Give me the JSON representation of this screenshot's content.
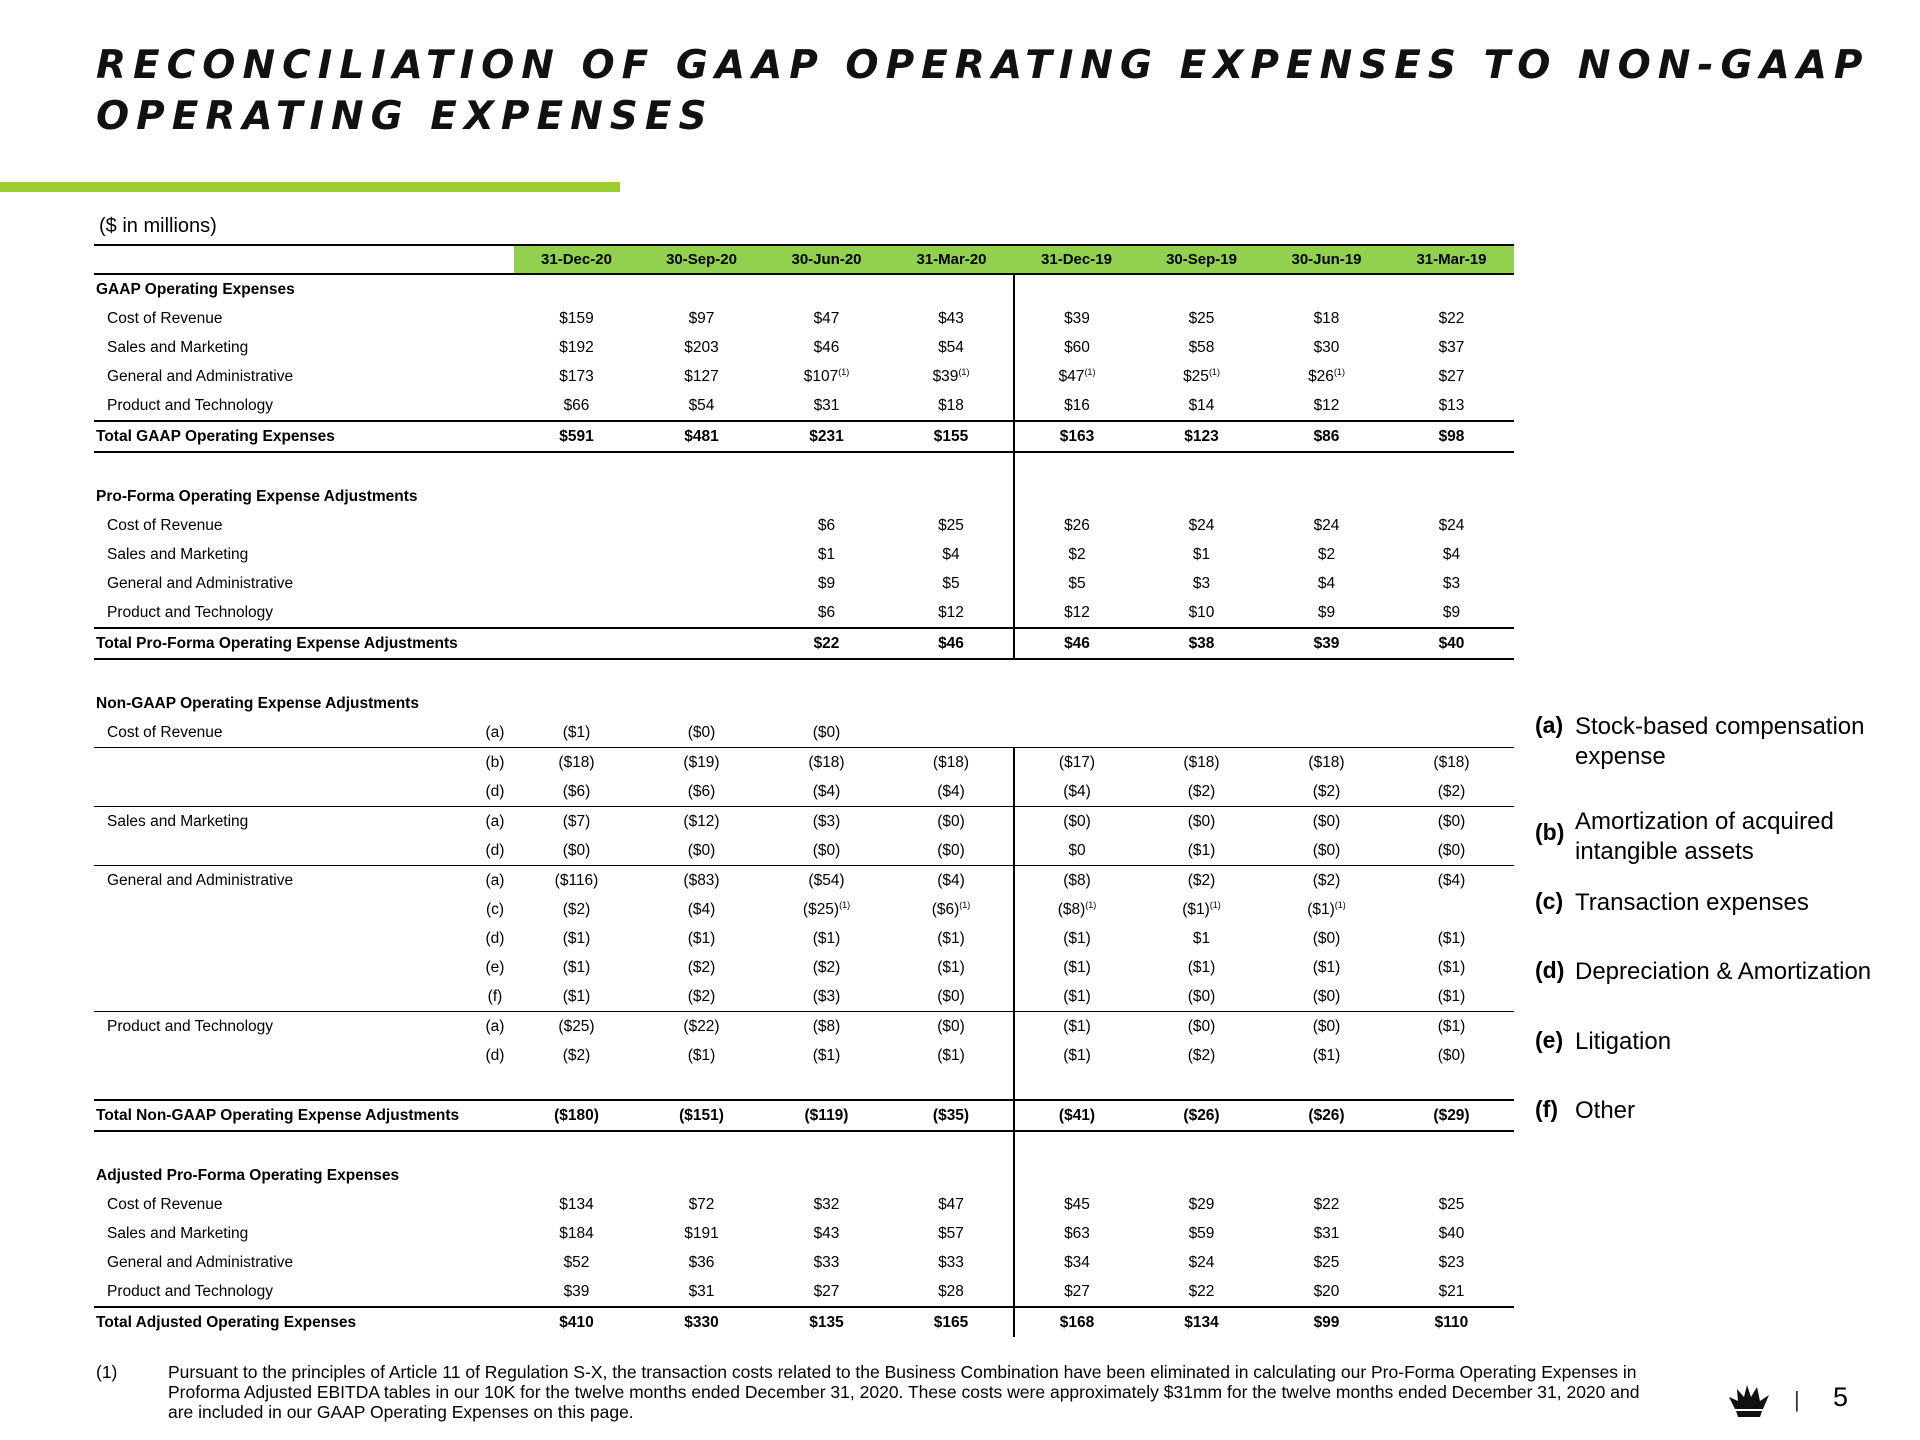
{
  "title": {
    "line1": "RECONCILIATION OF GAAP OPERATING EXPENSES TO NON-GAAP",
    "line2": "OPERATING EXPENSES"
  },
  "units": "($ in millions)",
  "columns": [
    "31-Dec-20",
    "30-Sep-20",
    "30-Jun-20",
    "31-Mar-20",
    "31-Dec-19",
    "30-Sep-19",
    "30-Jun-19",
    "31-Mar-19"
  ],
  "footnote_marker": "(1)",
  "rows": [
    {
      "kind": "section",
      "label": "GAAP Operating Expenses",
      "code": "",
      "values": [
        "",
        "",
        "",
        "",
        "",
        "",
        "",
        ""
      ]
    },
    {
      "kind": "item",
      "label": "Cost of Revenue",
      "code": "",
      "values": [
        "$159",
        "$97",
        "$47",
        "$43",
        "$39",
        "$25",
        "$18",
        "$22"
      ]
    },
    {
      "kind": "item",
      "label": "Sales and Marketing",
      "code": "",
      "values": [
        "$192",
        "$203",
        "$46",
        "$54",
        "$60",
        "$58",
        "$30",
        "$37"
      ]
    },
    {
      "kind": "item",
      "label": "General and Administrative",
      "code": "",
      "values": [
        "$173",
        "$127",
        "$107",
        "$39",
        "$47",
        "$25",
        "$26",
        "$27"
      ],
      "fn": [
        false,
        false,
        true,
        true,
        true,
        true,
        true,
        false
      ]
    },
    {
      "kind": "item",
      "label": "Product and Technology",
      "code": "",
      "values": [
        "$66",
        "$54",
        "$31",
        "$18",
        "$16",
        "$14",
        "$12",
        "$13"
      ]
    },
    {
      "kind": "total",
      "label": "Total GAAP Operating Expenses",
      "code": "",
      "values": [
        "$591",
        "$481",
        "$231",
        "$155",
        "$163",
        "$123",
        "$86",
        "$98"
      ]
    },
    {
      "kind": "blank",
      "label": "",
      "code": "",
      "values": [
        "",
        "",
        "",
        "",
        "",
        "",
        "",
        ""
      ]
    },
    {
      "kind": "section",
      "label": "Pro-Forma Operating Expense Adjustments",
      "code": "",
      "values": [
        "",
        "",
        "",
        "",
        "",
        "",
        "",
        ""
      ]
    },
    {
      "kind": "item",
      "label": "Cost of Revenue",
      "code": "",
      "values": [
        "",
        "",
        "$6",
        "$25",
        "$26",
        "$24",
        "$24",
        "$24"
      ]
    },
    {
      "kind": "item",
      "label": "Sales and Marketing",
      "code": "",
      "values": [
        "",
        "",
        "$1",
        "$4",
        "$2",
        "$1",
        "$2",
        "$4"
      ]
    },
    {
      "kind": "item",
      "label": "General and Administrative",
      "code": "",
      "values": [
        "",
        "",
        "$9",
        "$5",
        "$5",
        "$3",
        "$4",
        "$3"
      ]
    },
    {
      "kind": "item",
      "label": "Product and Technology",
      "code": "",
      "values": [
        "",
        "",
        "$6",
        "$12",
        "$12",
        "$10",
        "$9",
        "$9"
      ]
    },
    {
      "kind": "total",
      "label": "Total Pro-Forma Operating Expense Adjustments",
      "code": "",
      "values": [
        "",
        "",
        "$22",
        "$46",
        "$46",
        "$38",
        "$39",
        "$40"
      ]
    },
    {
      "kind": "blank",
      "label": "",
      "code": "",
      "values": [
        "",
        "",
        "",
        "",
        "",
        "",
        "",
        ""
      ],
      "nosep": true
    },
    {
      "kind": "section",
      "label": "Non-GAAP Operating Expense Adjustments",
      "code": "",
      "values": [
        "",
        "",
        "",
        "",
        "",
        "",
        "",
        ""
      ],
      "nosep": true
    },
    {
      "kind": "item",
      "label": "Cost of Revenue",
      "code": "(a)",
      "values": [
        "($1)",
        "($0)",
        "($0)",
        "",
        "",
        "",
        "",
        ""
      ],
      "nosep": true,
      "bl": true
    },
    {
      "kind": "item",
      "label": "",
      "code": "(b)",
      "values": [
        "($18)",
        "($19)",
        "($18)",
        "($18)",
        "($17)",
        "($18)",
        "($18)",
        "($18)"
      ]
    },
    {
      "kind": "item",
      "label": "",
      "code": "(d)",
      "values": [
        "($6)",
        "($6)",
        "($4)",
        "($4)",
        "($4)",
        "($2)",
        "($2)",
        "($2)"
      ],
      "bl": true
    },
    {
      "kind": "item",
      "label": "Sales and Marketing",
      "code": "(a)",
      "values": [
        "($7)",
        "($12)",
        "($3)",
        "($0)",
        "($0)",
        "($0)",
        "($0)",
        "($0)"
      ]
    },
    {
      "kind": "item",
      "label": "",
      "code": "(d)",
      "values": [
        "($0)",
        "($0)",
        "($0)",
        "($0)",
        "$0",
        "($1)",
        "($0)",
        "($0)"
      ],
      "bl": true
    },
    {
      "kind": "item",
      "label": "General and Administrative",
      "code": "(a)",
      "values": [
        "($116)",
        "($83)",
        "($54)",
        "($4)",
        "($8)",
        "($2)",
        "($2)",
        "($4)"
      ]
    },
    {
      "kind": "item",
      "label": "",
      "code": "(c)",
      "values": [
        "($2)",
        "($4)",
        "($25)",
        "($6)",
        "($8)",
        "($1)",
        "($1)",
        ""
      ],
      "fn": [
        false,
        false,
        true,
        true,
        true,
        true,
        true,
        false
      ]
    },
    {
      "kind": "item",
      "label": "",
      "code": "(d)",
      "values": [
        "($1)",
        "($1)",
        "($1)",
        "($1)",
        "($1)",
        "$1",
        "($0)",
        "($1)"
      ]
    },
    {
      "kind": "item",
      "label": "",
      "code": "(e)",
      "values": [
        "($1)",
        "($2)",
        "($2)",
        "($1)",
        "($1)",
        "($1)",
        "($1)",
        "($1)"
      ]
    },
    {
      "kind": "item",
      "label": "",
      "code": "(f)",
      "values": [
        "($1)",
        "($2)",
        "($3)",
        "($0)",
        "($1)",
        "($0)",
        "($0)",
        "($1)"
      ],
      "bl": true
    },
    {
      "kind": "item",
      "label": "Product and Technology",
      "code": "(a)",
      "values": [
        "($25)",
        "($22)",
        "($8)",
        "($0)",
        "($1)",
        "($0)",
        "($0)",
        "($1)"
      ]
    },
    {
      "kind": "item",
      "label": "",
      "code": "(d)",
      "values": [
        "($2)",
        "($1)",
        "($1)",
        "($1)",
        "($1)",
        "($2)",
        "($1)",
        "($0)"
      ]
    },
    {
      "kind": "blank",
      "label": "",
      "code": "",
      "values": [
        "",
        "",
        "",
        "",
        "",
        "",
        "",
        ""
      ]
    },
    {
      "kind": "total",
      "label": "Total Non-GAAP Operating Expense Adjustments",
      "code": "",
      "values": [
        "($180)",
        "($151)",
        "($119)",
        "($35)",
        "($41)",
        "($26)",
        "($26)",
        "($29)"
      ]
    },
    {
      "kind": "blank",
      "label": "",
      "code": "",
      "values": [
        "",
        "",
        "",
        "",
        "",
        "",
        "",
        ""
      ]
    },
    {
      "kind": "section",
      "label": "Adjusted Pro-Forma Operating Expenses",
      "code": "",
      "values": [
        "",
        "",
        "",
        "",
        "",
        "",
        "",
        ""
      ]
    },
    {
      "kind": "item",
      "label": "Cost of Revenue",
      "code": "",
      "values": [
        "$134",
        "$72",
        "$32",
        "$47",
        "$45",
        "$29",
        "$22",
        "$25"
      ]
    },
    {
      "kind": "item",
      "label": "Sales and Marketing",
      "code": "",
      "values": [
        "$184",
        "$191",
        "$43",
        "$57",
        "$63",
        "$59",
        "$31",
        "$40"
      ]
    },
    {
      "kind": "item",
      "label": "General and Administrative",
      "code": "",
      "values": [
        "$52",
        "$36",
        "$33",
        "$33",
        "$34",
        "$24",
        "$25",
        "$23"
      ]
    },
    {
      "kind": "item",
      "label": "Product and Technology",
      "code": "",
      "values": [
        "$39",
        "$31",
        "$27",
        "$28",
        "$27",
        "$22",
        "$20",
        "$21"
      ]
    },
    {
      "kind": "total",
      "label": "Total Adjusted Operating Expenses",
      "code": "",
      "values": [
        "$410",
        "$330",
        "$135",
        "$165",
        "$168",
        "$134",
        "$99",
        "$110"
      ],
      "nobottom": true
    }
  ],
  "legend": [
    {
      "key": "(a)",
      "text": "Stock-based compensation expense"
    },
    {
      "key": "(b)",
      "text": "Amortization of acquired intangible assets"
    },
    {
      "key": "(c)",
      "text": "Transaction expenses"
    },
    {
      "key": "(d)",
      "text": "Depreciation & Amortization"
    },
    {
      "key": "(e)",
      "text": "Litigation"
    },
    {
      "key": "(f)",
      "text": "Other"
    }
  ],
  "footnote": {
    "marker": "(1)",
    "text": "Pursuant to the principles of Article 11 of Regulation S-X, the transaction costs related to the Business Combination have been eliminated in calculating our Pro-Forma Operating Expenses in Proforma Adjusted EBITDA tables in our 10K for the twelve months ended December 31, 2020. These costs were approximately $31mm for the twelve months ended December 31, 2020 and are included in our GAAP Operating Expenses on this page."
  },
  "page": {
    "separator": "|",
    "number": "5"
  },
  "colors": {
    "accent": "#92D050",
    "bar": "#9ACD32"
  },
  "logo_icon": "crown-logo-icon"
}
